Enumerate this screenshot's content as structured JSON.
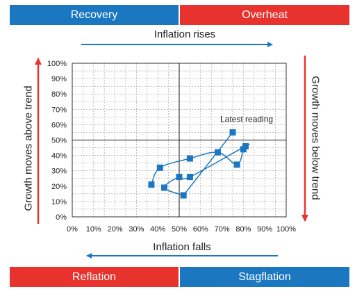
{
  "colors": {
    "blue": "#1b78c0",
    "red": "#e8322d",
    "grid": "#9a9a9a",
    "line": "#1b78c0"
  },
  "bands": {
    "top_left": "Recovery",
    "top_right": "Overheat",
    "bottom_left": "Reflation",
    "bottom_right": "Stagflation"
  },
  "labels": {
    "inflation_rises": "Inflation rises",
    "inflation_falls": "Inflation falls",
    "growth_above": "Growth moves above trend",
    "growth_below": "Growth moves below trend"
  },
  "chart_data": {
    "type": "scatter",
    "xlim": [
      0,
      100
    ],
    "ylim": [
      0,
      100
    ],
    "x_ticks": [
      "0%",
      "10%",
      "20%",
      "30%",
      "40%",
      "50%",
      "60%",
      "70%",
      "80%",
      "90%",
      "100%"
    ],
    "y_ticks": [
      "0%",
      "10%",
      "20%",
      "30%",
      "40%",
      "50%",
      "60%",
      "70%",
      "80%",
      "90%",
      "100%"
    ],
    "crosshair": {
      "x": 50,
      "y": 50
    },
    "grid": true,
    "points": [
      {
        "x": 37,
        "y": 21
      },
      {
        "x": 41,
        "y": 32
      },
      {
        "x": 55,
        "y": 38
      },
      {
        "x": 68,
        "y": 42
      },
      {
        "x": 77,
        "y": 34
      },
      {
        "x": 80,
        "y": 44
      },
      {
        "x": 81,
        "y": 46
      },
      {
        "x": 55,
        "y": 26
      },
      {
        "x": 50,
        "y": 26
      },
      {
        "x": 43,
        "y": 19
      },
      {
        "x": 52,
        "y": 14
      },
      {
        "x": 75,
        "y": 55
      }
    ],
    "latest_index": 11,
    "annotation": "Latest reading"
  }
}
